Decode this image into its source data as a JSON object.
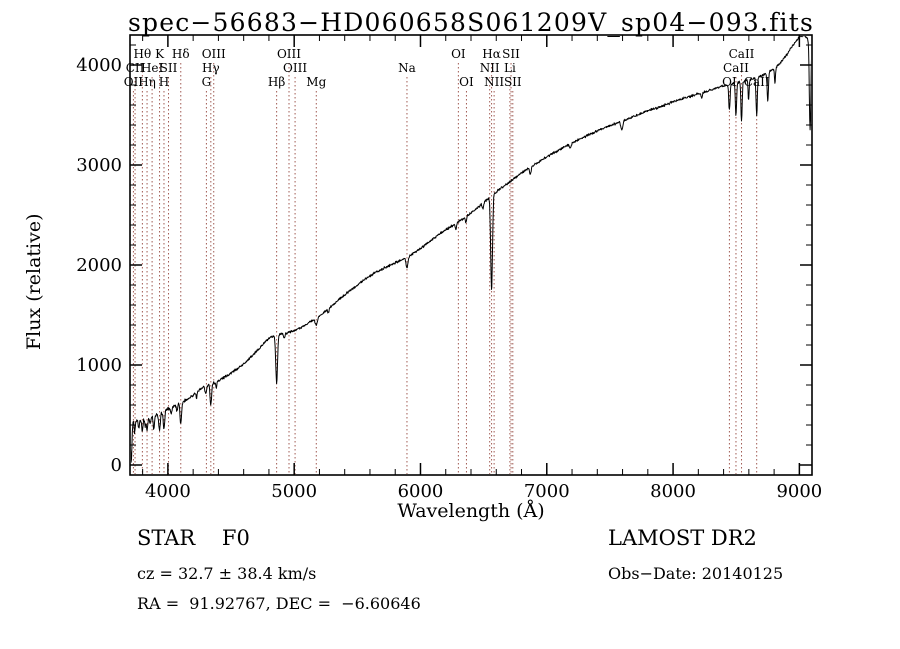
{
  "title_bar": "spec−56683−HD060658S061209V_sp04−093.fits",
  "chart_data": {
    "type": "line",
    "title": "spec−56683−HD060658S061209V_sp04−093.fits",
    "xlabel": "Wavelength (Å)",
    "ylabel": "Flux (relative)",
    "xlim": [
      3700,
      9100
    ],
    "ylim": [
      -100,
      4300
    ],
    "xticks": [
      4000,
      5000,
      6000,
      7000,
      8000,
      9000
    ],
    "yticks": [
      0,
      1000,
      2000,
      3000,
      4000
    ],
    "x_minor_step": 200,
    "y_minor_step": 200,
    "grid": false,
    "legend": "none",
    "line_color": "#000000",
    "marker_line_color": "#a05a52",
    "noise_base": 18,
    "continuum_format": "[wavelength_A, flux]",
    "continuum": [
      [
        3700,
        300
      ],
      [
        3725,
        430
      ],
      [
        3760,
        445
      ],
      [
        3800,
        460
      ],
      [
        3850,
        472
      ],
      [
        3900,
        492
      ],
      [
        3950,
        525
      ],
      [
        4000,
        560
      ],
      [
        4050,
        592
      ],
      [
        4100,
        622
      ],
      [
        4150,
        655
      ],
      [
        4200,
        700
      ],
      [
        4250,
        752
      ],
      [
        4300,
        790
      ],
      [
        4350,
        812
      ],
      [
        4400,
        842
      ],
      [
        4450,
        880
      ],
      [
        4500,
        920
      ],
      [
        4550,
        962
      ],
      [
        4600,
        1012
      ],
      [
        4650,
        1070
      ],
      [
        4700,
        1132
      ],
      [
        4750,
        1205
      ],
      [
        4800,
        1262
      ],
      [
        4850,
        1300
      ],
      [
        4900,
        1312
      ],
      [
        4950,
        1322
      ],
      [
        5000,
        1342
      ],
      [
        5050,
        1372
      ],
      [
        5100,
        1410
      ],
      [
        5150,
        1450
      ],
      [
        5200,
        1492
      ],
      [
        5250,
        1540
      ],
      [
        5300,
        1592
      ],
      [
        5350,
        1650
      ],
      [
        5400,
        1702
      ],
      [
        5450,
        1752
      ],
      [
        5500,
        1800
      ],
      [
        5550,
        1850
      ],
      [
        5600,
        1892
      ],
      [
        5650,
        1930
      ],
      [
        5700,
        1962
      ],
      [
        5750,
        1992
      ],
      [
        5800,
        2022
      ],
      [
        5850,
        2052
      ],
      [
        5900,
        2082
      ],
      [
        5950,
        2122
      ],
      [
        6000,
        2162
      ],
      [
        6050,
        2212
      ],
      [
        6100,
        2262
      ],
      [
        6150,
        2312
      ],
      [
        6200,
        2352
      ],
      [
        6250,
        2392
      ],
      [
        6300,
        2432
      ],
      [
        6350,
        2472
      ],
      [
        6400,
        2522
      ],
      [
        6450,
        2572
      ],
      [
        6500,
        2622
      ],
      [
        6550,
        2682
      ],
      [
        6600,
        2732
      ],
      [
        6650,
        2782
      ],
      [
        6700,
        2822
      ],
      [
        6750,
        2872
      ],
      [
        6800,
        2922
      ],
      [
        6850,
        2962
      ],
      [
        6900,
        3002
      ],
      [
        6950,
        3042
      ],
      [
        7000,
        3082
      ],
      [
        7100,
        3152
      ],
      [
        7200,
        3222
      ],
      [
        7300,
        3282
      ],
      [
        7400,
        3342
      ],
      [
        7500,
        3392
      ],
      [
        7600,
        3442
      ],
      [
        7700,
        3492
      ],
      [
        7800,
        3542
      ],
      [
        7900,
        3582
      ],
      [
        8000,
        3632
      ],
      [
        8100,
        3672
      ],
      [
        8200,
        3712
      ],
      [
        8300,
        3752
      ],
      [
        8400,
        3792
      ],
      [
        8500,
        3822
      ],
      [
        8600,
        3852
      ],
      [
        8700,
        3892
      ],
      [
        8750,
        3922
      ],
      [
        8800,
        3962
      ],
      [
        8850,
        4022
      ],
      [
        8900,
        4102
      ],
      [
        8950,
        4202
      ],
      [
        9000,
        4282
      ],
      [
        9040,
        4300
      ],
      [
        9070,
        4260
      ],
      [
        9100,
        4210
      ]
    ],
    "absorption_feature_format": "[center_A, depth_flux, sigma_A]",
    "absorption_features": [
      [
        3710,
        330,
        5
      ],
      [
        3737,
        110,
        4
      ],
      [
        3770,
        90,
        4
      ],
      [
        3798,
        115,
        5
      ],
      [
        3820,
        70,
        4
      ],
      [
        3835,
        125,
        5
      ],
      [
        3860,
        60,
        4
      ],
      [
        3889,
        135,
        5
      ],
      [
        3934,
        175,
        6
      ],
      [
        3969,
        175,
        6
      ],
      [
        4026,
        65,
        5
      ],
      [
        4072,
        60,
        5
      ],
      [
        4102,
        215,
        6
      ],
      [
        4227,
        55,
        4
      ],
      [
        4300,
        80,
        6
      ],
      [
        4340,
        205,
        6
      ],
      [
        4383,
        60,
        4
      ],
      [
        4861,
        480,
        7
      ],
      [
        4922,
        55,
        5
      ],
      [
        5175,
        70,
        9
      ],
      [
        5270,
        40,
        5
      ],
      [
        5893,
        105,
        8
      ],
      [
        6280,
        60,
        5
      ],
      [
        6360,
        50,
        5
      ],
      [
        6495,
        55,
        5
      ],
      [
        6563,
        950,
        7
      ],
      [
        6870,
        75,
        6
      ],
      [
        7186,
        45,
        6
      ],
      [
        7594,
        85,
        8
      ],
      [
        8227,
        55,
        5
      ],
      [
        8446,
        260,
        5
      ],
      [
        8498,
        330,
        5
      ],
      [
        8542,
        400,
        5
      ],
      [
        8598,
        210,
        4
      ],
      [
        8662,
        380,
        5
      ],
      [
        8750,
        280,
        5
      ],
      [
        8807,
        150,
        4
      ],
      [
        9085,
        880,
        6
      ]
    ],
    "markers": [
      {
        "wavelength": 3798,
        "label": "Hθ",
        "row": 1
      },
      {
        "wavelength": 3934,
        "label": "K",
        "row": 1
      },
      {
        "wavelength": 4102,
        "label": "Hδ",
        "row": 1
      },
      {
        "wavelength": 4363,
        "label": "OIII",
        "row": 1
      },
      {
        "wavelength": 4959,
        "label": "OIII",
        "row": 1
      },
      {
        "wavelength": 6300,
        "label": "OI",
        "row": 1
      },
      {
        "wavelength": 6563,
        "label": "Hα",
        "row": 1
      },
      {
        "wavelength": 6717,
        "label": "SII",
        "row": 1
      },
      {
        "wavelength": 8542,
        "label": "CaII",
        "row": 1
      },
      {
        "wavelength": 3740,
        "label": "CII",
        "row": 2
      },
      {
        "wavelength": 3875,
        "label": "HeI",
        "row": 2
      },
      {
        "wavelength": 4005,
        "label": "SII",
        "row": 2
      },
      {
        "wavelength": 4340,
        "label": "Hγ",
        "row": 2
      },
      {
        "wavelength": 5007,
        "label": "OIII",
        "row": 2
      },
      {
        "wavelength": 5893,
        "label": "Na",
        "row": 2
      },
      {
        "wavelength": 6548,
        "label": "NII",
        "row": 2
      },
      {
        "wavelength": 6708,
        "label": "Li",
        "row": 2
      },
      {
        "wavelength": 8498,
        "label": "CaII",
        "row": 2
      },
      {
        "wavelength": 3727,
        "label": "OII",
        "row": 3
      },
      {
        "wavelength": 3835,
        "label": "Hη",
        "row": 3
      },
      {
        "wavelength": 3969,
        "label": "H",
        "row": 3
      },
      {
        "wavelength": 4305,
        "label": "G",
        "row": 3
      },
      {
        "wavelength": 4861,
        "label": "Hβ",
        "row": 3
      },
      {
        "wavelength": 5175,
        "label": "Mg",
        "row": 3
      },
      {
        "wavelength": 6364,
        "label": "OI",
        "row": 3
      },
      {
        "wavelength": 6583,
        "label": "NII",
        "row": 3
      },
      {
        "wavelength": 6731,
        "label": "SII",
        "row": 3
      },
      {
        "wavelength": 8446,
        "label": "OI",
        "row": 3
      },
      {
        "wavelength": 8662,
        "label": "CaII",
        "row": 3
      }
    ]
  },
  "footer": {
    "class_line": "STAR    F0",
    "survey_line": "LAMOST DR2",
    "cz_line": "cz = 32.7 ± 38.4 km/s",
    "obsdate_line": "Obs−Date: 20140125",
    "coord_line": "RA =  91.92767, DEC =  −6.60646"
  }
}
